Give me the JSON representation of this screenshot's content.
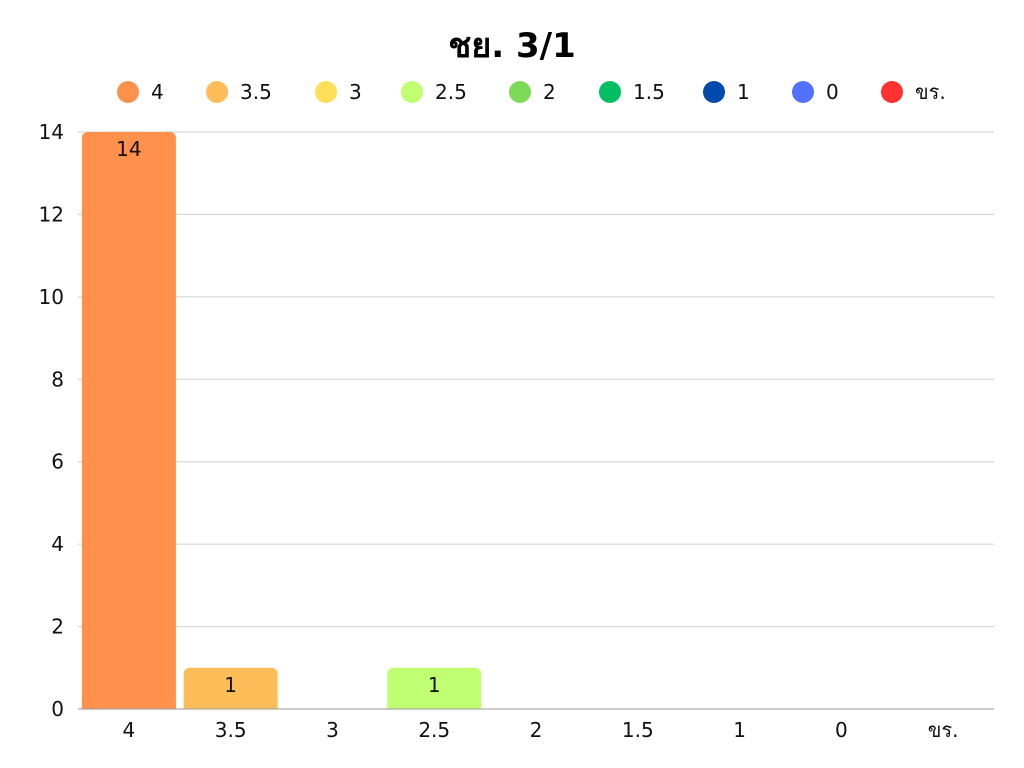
{
  "chart_data": {
    "type": "bar",
    "title": "ชย. 3/1",
    "xlabel": "",
    "ylabel": "",
    "categories": [
      "4",
      "3.5",
      "3",
      "2.5",
      "2",
      "1.5",
      "1",
      "0",
      "ขร."
    ],
    "values": [
      14,
      1,
      0,
      1,
      0,
      0,
      0,
      0,
      0
    ],
    "colors": [
      "#FF914D",
      "#FFBD59",
      "#FFDE59",
      "#C1FF72",
      "#7ED957",
      "#00BF63",
      "#004AAD",
      "#5271FF",
      "#FF3131"
    ],
    "ylim": [
      0,
      14
    ],
    "yticks": [
      0,
      2,
      4,
      6,
      8,
      10,
      12,
      14
    ],
    "grid": true,
    "legend": "top",
    "data_labels": true
  }
}
